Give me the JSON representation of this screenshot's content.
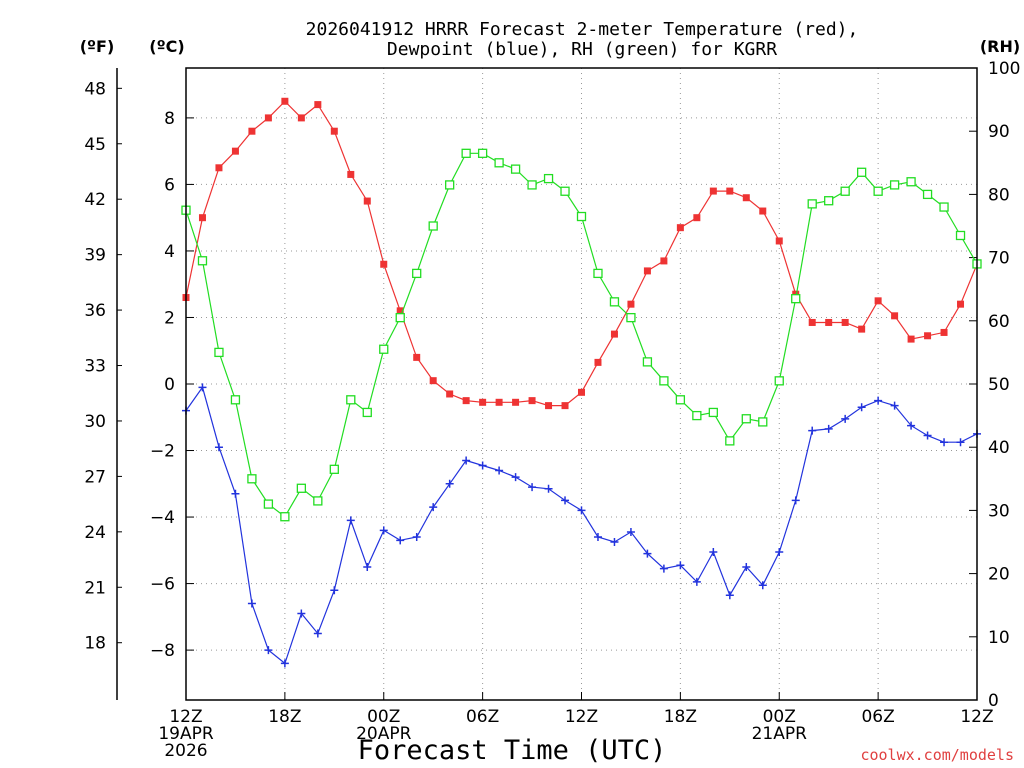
{
  "chart_data": {
    "type": "line",
    "title": [
      "2026041912 HRRR Forecast 2-meter Temperature (red),",
      "Dewpoint (blue), RH (green) for KGRR"
    ],
    "xlabel": "Forecast Time (UTC)",
    "credit": "coolwx.com/models",
    "units": {
      "fahrenheit": "(ºF)",
      "celsius": "(ºC)",
      "rh": "(RH)"
    },
    "celsius_axis": {
      "ylim": [
        -9.5,
        9.5
      ],
      "ticks": [
        -8,
        -6,
        -4,
        -2,
        0,
        2,
        4,
        6,
        8
      ],
      "tick_labels": [
        "−8",
        "−6",
        "−4",
        "−2",
        "0",
        "2",
        "4",
        "6",
        "8"
      ]
    },
    "fahrenheit_axis": {
      "ticks": [
        18,
        21,
        24,
        27,
        30,
        33,
        36,
        39,
        42,
        45,
        48
      ]
    },
    "rh_axis": {
      "ylim": [
        0,
        100
      ],
      "ticks": [
        0,
        10,
        20,
        30,
        40,
        50,
        60,
        70,
        80,
        90,
        100
      ]
    },
    "x_range": [
      0,
      48
    ],
    "x_ticks": [
      {
        "hour": 0,
        "lines": [
          "12Z",
          "19APR",
          "2026"
        ]
      },
      {
        "hour": 6,
        "lines": [
          "18Z"
        ]
      },
      {
        "hour": 12,
        "lines": [
          "00Z",
          "20APR"
        ]
      },
      {
        "hour": 18,
        "lines": [
          "06Z"
        ]
      },
      {
        "hour": 24,
        "lines": [
          "12Z"
        ]
      },
      {
        "hour": 30,
        "lines": [
          "18Z"
        ]
      },
      {
        "hour": 36,
        "lines": [
          "00Z",
          "21APR"
        ]
      },
      {
        "hour": 42,
        "lines": [
          "06Z"
        ]
      },
      {
        "hour": 48,
        "lines": [
          "12Z"
        ]
      }
    ],
    "series": [
      {
        "name": "Temperature (°C)",
        "axis": "celsius",
        "color": "#ee3333",
        "marker": "filled-square",
        "values": [
          2.6,
          5.0,
          6.5,
          7.0,
          7.6,
          8.0,
          8.5,
          8.0,
          8.4,
          7.6,
          6.3,
          5.5,
          3.6,
          2.2,
          0.8,
          0.1,
          -0.3,
          -0.5,
          -0.55,
          -0.55,
          -0.55,
          -0.5,
          -0.65,
          -0.65,
          -0.25,
          0.65,
          1.5,
          2.4,
          3.4,
          3.7,
          4.7,
          5.0,
          5.8,
          5.8,
          5.6,
          5.2,
          4.3,
          2.7,
          1.85,
          1.85,
          1.85,
          1.65,
          2.5,
          2.05,
          1.35,
          1.45,
          1.55,
          2.4,
          3.6
        ]
      },
      {
        "name": "Dewpoint (°C)",
        "axis": "celsius",
        "color": "#2233dd",
        "marker": "plus",
        "values": [
          -0.8,
          -0.1,
          -1.9,
          -3.3,
          -6.6,
          -8.0,
          -8.4,
          -6.9,
          -7.5,
          -6.2,
          -4.1,
          -5.5,
          -4.4,
          -4.7,
          -4.6,
          -3.7,
          -3.0,
          -2.3,
          -2.45,
          -2.6,
          -2.8,
          -3.1,
          -3.15,
          -3.5,
          -3.8,
          -4.6,
          -4.75,
          -4.45,
          -5.1,
          -5.55,
          -5.45,
          -5.95,
          -5.05,
          -6.35,
          -5.5,
          -6.05,
          -5.05,
          -3.5,
          -1.4,
          -1.35,
          -1.05,
          -0.7,
          -0.5,
          -0.65,
          -1.25,
          -1.55,
          -1.75,
          -1.75,
          -1.5
        ]
      },
      {
        "name": "Relative Humidity (%)",
        "axis": "rh",
        "color": "#22dd22",
        "marker": "open-square",
        "values": [
          77.5,
          69.5,
          55,
          47.5,
          35,
          31,
          29,
          33.5,
          31.5,
          36.5,
          47.5,
          45.5,
          55.5,
          60.5,
          67.5,
          75,
          81.5,
          86.5,
          86.5,
          85,
          84,
          81.5,
          82.5,
          80.5,
          76.5,
          67.5,
          63,
          60.5,
          53.5,
          50.5,
          47.5,
          45,
          45.5,
          41,
          44.5,
          44,
          50.5,
          63.5,
          78.5,
          79,
          80.5,
          83.5,
          80.5,
          81.5,
          82,
          80,
          78,
          73.5,
          69
        ]
      }
    ]
  }
}
